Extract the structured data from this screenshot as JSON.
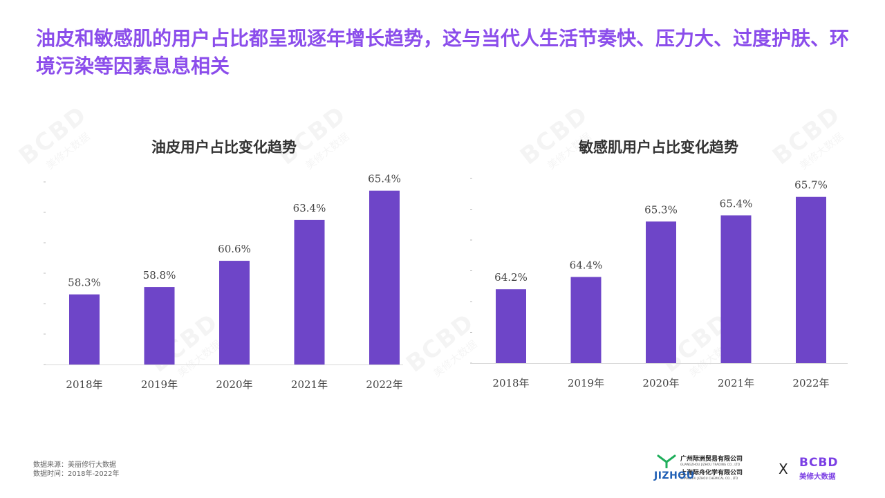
{
  "headline": "油皮和敏感肌的用户占比都呈现逐年增长趋势，这与当代人生活节奏快、压力大、过度护肤、环境污染等因素息息相关",
  "accent_color": "#8B4DEB",
  "bar_color": "#6E45C8",
  "chart_data": [
    {
      "type": "bar",
      "title": "油皮用户占比变化趋势",
      "categories": [
        "2018年",
        "2019年",
        "2020年",
        "2021年",
        "2022年"
      ],
      "values": [
        58.3,
        58.8,
        60.6,
        63.4,
        65.4
      ],
      "data_labels": [
        "58.3%",
        "58.8%",
        "60.6%",
        "63.4%",
        "65.4%"
      ],
      "unit": "%",
      "ylim": [
        53.5,
        66.0
      ],
      "grid": false,
      "legend": "none"
    },
    {
      "type": "bar",
      "title": "敏感肌用户占比变化趋势",
      "categories": [
        "2018年",
        "2019年",
        "2020年",
        "2021年",
        "2022年"
      ],
      "values": [
        64.2,
        64.4,
        65.3,
        65.4,
        65.7
      ],
      "data_labels": [
        "64.2%",
        "64.4%",
        "65.3%",
        "65.4%",
        "65.7%"
      ],
      "unit": "%",
      "ylim": [
        63.0,
        66.0
      ],
      "grid": false,
      "legend": "none"
    }
  ],
  "source": {
    "line1": "数据来源：美丽修行大数据",
    "line2": "数据时间：2018年-2022年"
  },
  "logos": {
    "jizhou_cn1": "广州际洲贸易有限公司",
    "jizhou_en1": "GUANGZHOU JIZHOU TRADING CO., LTD",
    "jizhou_cn2": "上海际舟化学有限公司",
    "jizhou_en2": "SHANGHAI JIZHOU CHEMICAL CO., LTD",
    "jizhou_word": "JIZHOU",
    "separator": "X",
    "bcbd_word": "BCBD",
    "bcbd_cn": "美修大数据"
  }
}
